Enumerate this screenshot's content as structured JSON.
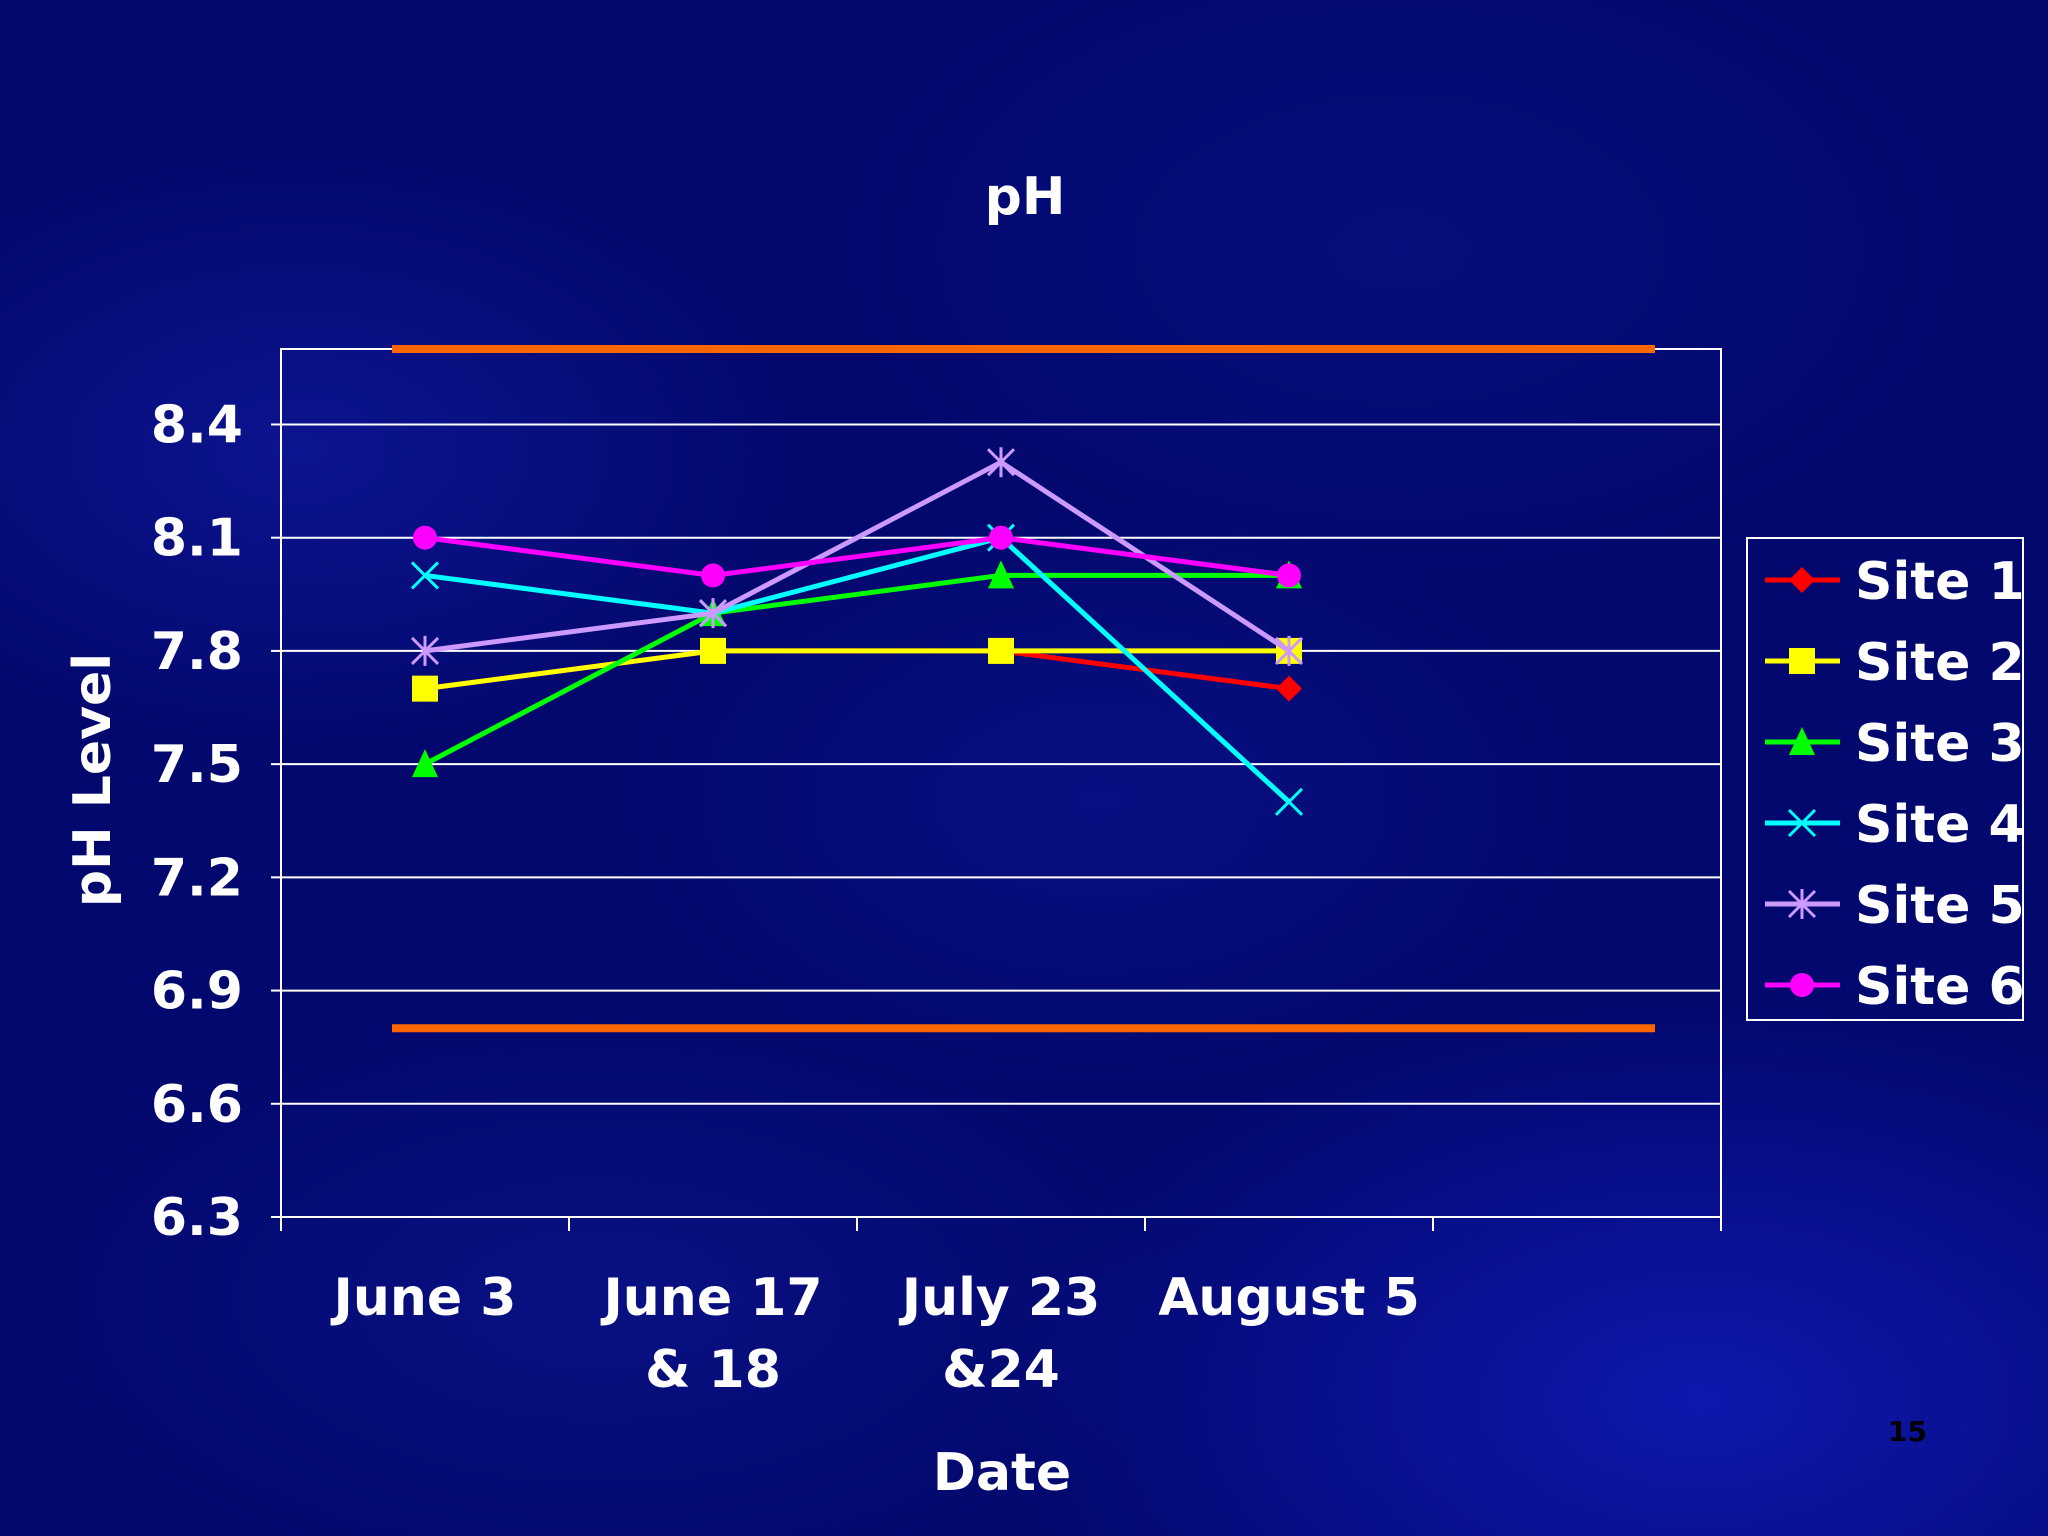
{
  "slide_number": "15",
  "chart_data": {
    "type": "line",
    "title": "pH",
    "xlabel": "Date",
    "ylabel": "pH Level",
    "categories": [
      [
        "June 3"
      ],
      [
        "June 17",
        "& 18"
      ],
      [
        "July 23",
        "&24"
      ],
      [
        "August 5"
      ]
    ],
    "ylim": [
      6.3,
      8.6
    ],
    "yticks": [
      "6.3",
      "6.6",
      "6.9",
      "7.2",
      "7.5",
      "7.8",
      "8.1",
      "8.4"
    ],
    "grid": true,
    "legend_position": "right",
    "reference_lines": [
      {
        "value": 8.6,
        "color": "#ff6600"
      },
      {
        "value": 6.8,
        "color": "#ff6600"
      }
    ],
    "series": [
      {
        "name": "Site 1",
        "values": [
          7.7,
          7.8,
          7.8,
          7.7
        ],
        "color": "#ff0000",
        "marker": "diamond"
      },
      {
        "name": "Site 2",
        "values": [
          7.7,
          7.8,
          7.8,
          7.8
        ],
        "color": "#ffff00",
        "marker": "square"
      },
      {
        "name": "Site 3",
        "values": [
          7.5,
          7.9,
          8.0,
          8.0
        ],
        "color": "#00ff00",
        "marker": "triangle"
      },
      {
        "name": "Site 4",
        "values": [
          8.0,
          7.9,
          8.1,
          7.4
        ],
        "color": "#00ffff",
        "marker": "x"
      },
      {
        "name": "Site 5",
        "values": [
          7.8,
          7.9,
          8.3,
          7.8
        ],
        "color": "#cc99ff",
        "marker": "star"
      },
      {
        "name": "Site 6",
        "values": [
          8.1,
          8.0,
          8.1,
          8.0
        ],
        "color": "#ff00ff",
        "marker": "circle"
      }
    ]
  }
}
